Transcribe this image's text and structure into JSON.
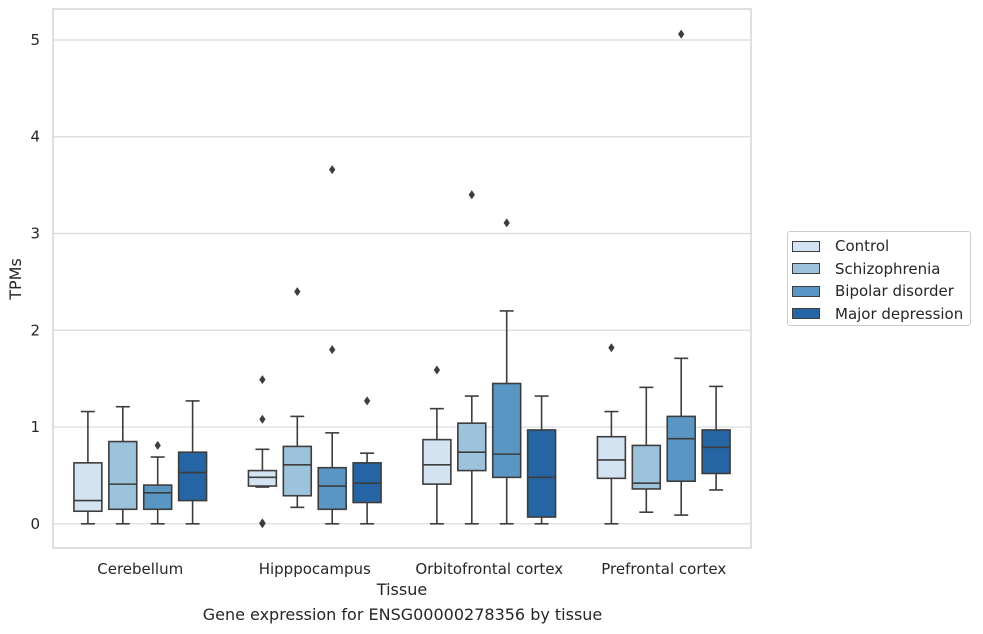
{
  "caption": "Gene expression for ENSG00000278356 by tissue",
  "chart_data": {
    "type": "box",
    "xlabel": "Tissue",
    "ylabel": "TPMs",
    "ylim": [
      -0.25,
      5.32
    ],
    "yticks": [
      0,
      1,
      2,
      3,
      4,
      5
    ],
    "yticklabels": [
      "0",
      "1",
      "2",
      "3",
      "4",
      "5"
    ],
    "grid": true,
    "legend_position": "right",
    "categories": [
      "Cerebellum",
      "Hipppocampus",
      "Orbitofrontal cortex",
      "Prefrontal cortex"
    ],
    "series": [
      {
        "name": "Control",
        "color": "#d4e3f2",
        "boxes": [
          {
            "whislo": 0.0,
            "q1": 0.13,
            "med": 0.24,
            "q3": 0.63,
            "whishi": 1.16,
            "fliers": []
          },
          {
            "whislo": 0.38,
            "q1": 0.39,
            "med": 0.48,
            "q3": 0.55,
            "whishi": 0.77,
            "fliers": [
              1.49,
              1.08,
              0.01,
              0.0
            ]
          },
          {
            "whislo": 0.0,
            "q1": 0.41,
            "med": 0.61,
            "q3": 0.87,
            "whishi": 1.19,
            "fliers": [
              1.59
            ]
          },
          {
            "whislo": 0.0,
            "q1": 0.47,
            "med": 0.66,
            "q3": 0.9,
            "whishi": 1.16,
            "fliers": [
              1.82
            ]
          }
        ]
      },
      {
        "name": "Schizophrenia",
        "color": "#9dc2db",
        "boxes": [
          {
            "whislo": 0.0,
            "q1": 0.15,
            "med": 0.41,
            "q3": 0.85,
            "whishi": 1.21,
            "fliers": []
          },
          {
            "whislo": 0.17,
            "q1": 0.29,
            "med": 0.61,
            "q3": 0.8,
            "whishi": 1.11,
            "fliers": [
              2.4
            ]
          },
          {
            "whislo": 0.0,
            "q1": 0.55,
            "med": 0.74,
            "q3": 1.04,
            "whishi": 1.32,
            "fliers": [
              3.4
            ]
          },
          {
            "whislo": 0.12,
            "q1": 0.36,
            "med": 0.42,
            "q3": 0.81,
            "whishi": 1.41,
            "fliers": []
          }
        ]
      },
      {
        "name": "Bipolar disorder",
        "color": "#5996c4",
        "boxes": [
          {
            "whislo": 0.0,
            "q1": 0.15,
            "med": 0.32,
            "q3": 0.4,
            "whishi": 0.69,
            "fliers": [
              0.81
            ]
          },
          {
            "whislo": 0.0,
            "q1": 0.15,
            "med": 0.39,
            "q3": 0.58,
            "whishi": 0.94,
            "fliers": [
              3.66,
              1.8
            ]
          },
          {
            "whislo": 0.0,
            "q1": 0.48,
            "med": 0.72,
            "q3": 1.45,
            "whishi": 2.2,
            "fliers": [
              3.11
            ]
          },
          {
            "whislo": 0.09,
            "q1": 0.44,
            "med": 0.88,
            "q3": 1.11,
            "whishi": 1.71,
            "fliers": [
              5.06
            ]
          }
        ]
      },
      {
        "name": "Major depression",
        "color": "#2565a3",
        "boxes": [
          {
            "whislo": 0.0,
            "q1": 0.24,
            "med": 0.53,
            "q3": 0.74,
            "whishi": 1.27,
            "fliers": []
          },
          {
            "whislo": 0.0,
            "q1": 0.22,
            "med": 0.42,
            "q3": 0.63,
            "whishi": 0.73,
            "fliers": [
              1.27
            ]
          },
          {
            "whislo": 0.0,
            "q1": 0.07,
            "med": 0.48,
            "q3": 0.97,
            "whishi": 1.32,
            "fliers": []
          },
          {
            "whislo": 0.35,
            "q1": 0.52,
            "med": 0.79,
            "q3": 0.97,
            "whishi": 1.42,
            "fliers": []
          }
        ]
      }
    ]
  }
}
